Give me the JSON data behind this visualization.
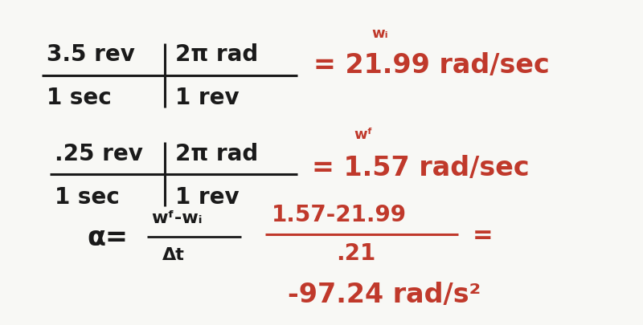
{
  "background_color": "#f8f8f5",
  "black_color": "#1a1a1a",
  "red_color": "#c0392b",
  "fig_width": 8.0,
  "fig_height": 4.06,
  "dpi": 100,
  "line1_top_left": "3.5 rev",
  "line1_top_right": "2π rad",
  "line1_bot_left": "1 sec",
  "line1_bot_right": "1 rev",
  "line1_wi_label": "wᵢ",
  "line1_result": "= 21.99 rad/sec",
  "line2_top_left": ".25 rev",
  "line2_top_right": "2π rad",
  "line2_bot_left": "1 sec",
  "line2_bot_right": "1 rev",
  "line2_wf_label": "wᶠ",
  "line2_result": "= 1.57 rad/sec",
  "alpha_sym": "α=",
  "alpha_frac_top": "wᶠ-wᵢ",
  "alpha_frac_bot": "Δt",
  "calc_top": "1.57-21.99",
  "calc_bot": ".21",
  "calc_eq": "=",
  "calc_result": "-97.24 rad/s²"
}
